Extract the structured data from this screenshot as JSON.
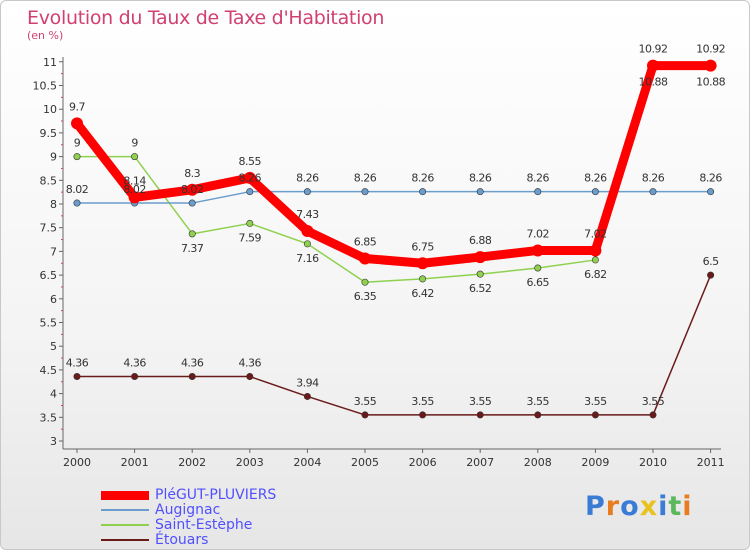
{
  "chart_data": {
    "type": "line",
    "title": "Evolution du Taux de Taxe d'Habitation",
    "subtitle": "(en %)",
    "x": [
      "2000",
      "2001",
      "2002",
      "2003",
      "2004",
      "2005",
      "2006",
      "2007",
      "2008",
      "2009",
      "2010",
      "2011"
    ],
    "y_ticks": [
      "3",
      "3.5",
      "4",
      "4.5",
      "5",
      "5.5",
      "6",
      "6.5",
      "7",
      "7.5",
      "8",
      "8.5",
      "9",
      "9.5",
      "10",
      "10.5",
      "11"
    ],
    "ylim": [
      3,
      11.1
    ],
    "series": [
      {
        "name": "Étouars",
        "color": "#6b1a1a",
        "values": [
          4.36,
          4.36,
          4.36,
          4.36,
          3.94,
          3.55,
          3.55,
          3.55,
          3.55,
          3.55,
          3.55,
          6.5
        ],
        "labels": [
          "4.36",
          "4.36",
          "4.36",
          "4.36",
          "3.94",
          "3.55",
          "3.55",
          "3.55",
          "3.55",
          "3.55",
          "3.55",
          "6.5"
        ]
      },
      {
        "name": "Saint-Estèphe",
        "color": "#8fd14f",
        "values": [
          9,
          9,
          7.37,
          7.59,
          7.16,
          6.35,
          6.42,
          6.52,
          6.65,
          6.82,
          10.88,
          10.88
        ],
        "labels": [
          "9",
          "9",
          "7.37",
          "7.59",
          "7.16",
          "6.35",
          "6.42",
          "6.52",
          "6.65",
          "6.82",
          "10.88",
          "10.88"
        ]
      },
      {
        "name": "Augignac",
        "color": "#6a9ccc",
        "values": [
          8.02,
          8.02,
          8.02,
          8.26,
          8.26,
          8.26,
          8.26,
          8.26,
          8.26,
          8.26,
          8.26,
          8.26
        ],
        "labels": [
          "8.02",
          "8.02",
          "8.02",
          "8.26",
          "8.26",
          "8.26",
          "8.26",
          "8.26",
          "8.26",
          "8.26",
          "8.26",
          "8.26"
        ]
      },
      {
        "name": "PléGUT-PLUVIERS",
        "color": "#ff0000",
        "values": [
          9.7,
          8.14,
          8.3,
          8.55,
          7.43,
          6.85,
          6.75,
          6.88,
          7.02,
          7.02,
          10.92,
          10.92
        ],
        "labels": [
          "9.7",
          "8.14",
          "8.3",
          "8.55",
          "7.43",
          "6.85",
          "6.75",
          "6.88",
          "7.02",
          "7.02",
          "10.92",
          "10.92"
        ]
      }
    ],
    "legend": [
      "PléGUT-PLUVIERS",
      "Augignac",
      "Saint-Estèphe",
      "Étouars"
    ],
    "grid": false
  },
  "logo": {
    "text": "Proxiti"
  }
}
